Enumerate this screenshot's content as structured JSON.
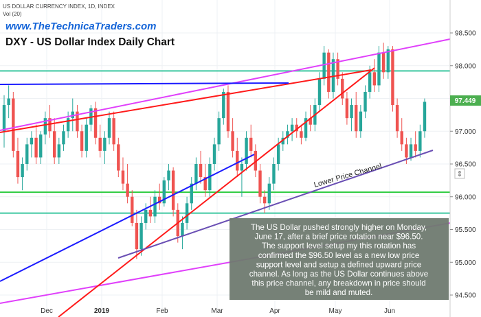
{
  "header": {
    "symbol_line": "US DOLLAR CURRENCY INDEX, 1D, INDEX",
    "volume_line": "Vol (20)",
    "brand": "www.TheTechnicaTraders.com",
    "title": "DXY - US Dollar Index Daily Chart"
  },
  "annotation": {
    "lines": [
      "The US Dollar pushed strongly higher on Monday,",
      "June 17, after a brief price rotation near $96.50.",
      "The support level setup my this rotation has",
      "confirmed the $96.50 level as a new low price",
      "support level and setup a defined upward price",
      "channel.  As long as the US Dollar continues above",
      "this price channel, any breakdown in price should",
      "be mild and muted."
    ]
  },
  "channel_label": "Lower Price Channel",
  "colors": {
    "up": "#26a69a",
    "down": "#ef5350",
    "magenta": "#e040fb",
    "red": "#ff1a1a",
    "blue": "#1a1aff",
    "purple": "#6a4fb4",
    "green": "#2ecc40",
    "teal": "#3cc7a0",
    "note_bg": "#6f7a70",
    "price_tag": "#4caf50"
  },
  "chart_data": {
    "type": "candlestick",
    "title": "DXY - US Dollar Index Daily Chart",
    "ylim": [
      94.35,
      98.8
    ],
    "y_ticks": [
      "94.500",
      "95.000",
      "95.500",
      "96.000",
      "96.500",
      "97.000",
      "97.500",
      "98.000",
      "98.500"
    ],
    "last_price": "97.449",
    "x_labels": [
      "Dec",
      "2019",
      "Feb",
      "Mar",
      "Apr",
      "May",
      "Jun"
    ],
    "horizontal_levels": [
      {
        "price": 97.92,
        "color": "teal"
      },
      {
        "price": 96.07,
        "color": "green"
      },
      {
        "price": 95.75,
        "color": "teal"
      }
    ],
    "candles": [
      [
        97.0,
        97.55,
        96.75,
        97.4
      ],
      [
        97.4,
        97.7,
        97.2,
        97.5
      ],
      [
        97.5,
        97.6,
        96.6,
        96.7
      ],
      [
        96.7,
        96.9,
        96.2,
        96.3
      ],
      [
        96.3,
        96.6,
        96.1,
        96.5
      ],
      [
        96.5,
        96.9,
        96.4,
        96.8
      ],
      [
        96.8,
        97.0,
        96.6,
        96.9
      ],
      [
        96.9,
        97.1,
        96.5,
        96.6
      ],
      [
        96.6,
        97.0,
        96.5,
        96.95
      ],
      [
        96.95,
        97.3,
        96.8,
        97.2
      ],
      [
        97.2,
        97.4,
        96.9,
        97.0
      ],
      [
        97.0,
        97.2,
        96.5,
        96.6
      ],
      [
        96.6,
        96.9,
        96.5,
        96.8
      ],
      [
        96.8,
        97.1,
        96.7,
        97.0
      ],
      [
        97.0,
        97.3,
        96.9,
        97.2
      ],
      [
        97.2,
        97.5,
        97.0,
        97.3
      ],
      [
        97.3,
        97.4,
        96.9,
        97.0
      ],
      [
        97.0,
        97.1,
        96.6,
        96.7
      ],
      [
        96.7,
        97.2,
        96.6,
        97.1
      ],
      [
        97.1,
        97.4,
        97.0,
        97.35
      ],
      [
        97.35,
        97.45,
        96.8,
        96.9
      ],
      [
        96.9,
        97.1,
        96.6,
        96.7
      ],
      [
        96.7,
        97.0,
        96.5,
        96.9
      ],
      [
        96.9,
        97.3,
        96.8,
        97.2
      ],
      [
        97.2,
        97.3,
        96.7,
        96.8
      ],
      [
        96.8,
        96.9,
        96.3,
        96.4
      ],
      [
        96.4,
        96.6,
        96.1,
        96.2
      ],
      [
        96.2,
        96.5,
        95.9,
        96.0
      ],
      [
        96.0,
        96.1,
        95.55,
        95.6
      ],
      [
        95.6,
        95.8,
        95.05,
        95.2
      ],
      [
        95.2,
        95.7,
        95.1,
        95.6
      ],
      [
        95.6,
        95.9,
        95.5,
        95.8
      ],
      [
        95.8,
        96.0,
        95.6,
        95.7
      ],
      [
        95.7,
        96.1,
        95.6,
        96.0
      ],
      [
        96.0,
        96.2,
        95.8,
        95.9
      ],
      [
        95.9,
        96.3,
        95.85,
        96.25
      ],
      [
        96.25,
        96.5,
        96.1,
        96.4
      ],
      [
        96.4,
        96.45,
        95.7,
        95.8
      ],
      [
        95.8,
        95.9,
        95.3,
        95.4
      ],
      [
        95.4,
        95.7,
        95.2,
        95.6
      ],
      [
        95.6,
        96.0,
        95.5,
        95.9
      ],
      [
        95.9,
        96.3,
        95.8,
        96.2
      ],
      [
        96.2,
        96.6,
        96.1,
        96.5
      ],
      [
        96.5,
        96.7,
        96.2,
        96.3
      ],
      [
        96.3,
        96.5,
        96.0,
        96.1
      ],
      [
        96.1,
        96.6,
        96.0,
        96.5
      ],
      [
        96.5,
        96.9,
        96.4,
        96.8
      ],
      [
        96.8,
        97.3,
        96.7,
        97.2
      ],
      [
        97.2,
        97.65,
        97.1,
        97.6
      ],
      [
        97.6,
        97.7,
        96.9,
        97.0
      ],
      [
        97.0,
        97.2,
        96.6,
        96.7
      ],
      [
        96.7,
        96.9,
        96.3,
        96.4
      ],
      [
        96.4,
        96.6,
        96.0,
        96.5
      ],
      [
        96.5,
        97.0,
        96.4,
        96.9
      ],
      [
        96.9,
        97.1,
        96.6,
        96.7
      ],
      [
        96.7,
        96.8,
        96.3,
        96.4
      ],
      [
        96.4,
        96.5,
        95.9,
        96.0
      ],
      [
        96.0,
        96.1,
        95.75,
        95.9
      ],
      [
        95.9,
        96.3,
        95.8,
        96.2
      ],
      [
        96.2,
        96.6,
        96.1,
        96.5
      ],
      [
        96.5,
        96.9,
        96.4,
        96.8
      ],
      [
        96.8,
        97.0,
        96.7,
        96.9
      ],
      [
        96.9,
        97.1,
        96.8,
        97.0
      ],
      [
        97.0,
        97.2,
        96.85,
        97.1
      ],
      [
        97.1,
        97.2,
        96.9,
        97.0
      ],
      [
        97.0,
        97.1,
        96.8,
        96.9
      ],
      [
        96.9,
        97.3,
        96.85,
        97.2
      ],
      [
        97.2,
        97.4,
        97.0,
        97.1
      ],
      [
        97.1,
        97.5,
        97.0,
        97.4
      ],
      [
        97.4,
        97.9,
        97.3,
        97.8
      ],
      [
        97.8,
        98.3,
        97.7,
        98.2
      ],
      [
        98.2,
        98.25,
        97.5,
        97.6
      ],
      [
        97.6,
        98.2,
        97.5,
        98.1
      ],
      [
        98.1,
        98.2,
        97.7,
        97.8
      ],
      [
        97.8,
        97.9,
        97.4,
        97.5
      ],
      [
        97.5,
        97.6,
        97.1,
        97.2
      ],
      [
        97.2,
        97.5,
        97.0,
        97.4
      ],
      [
        97.4,
        97.6,
        96.9,
        97.0
      ],
      [
        97.0,
        97.4,
        96.9,
        97.3
      ],
      [
        97.3,
        97.7,
        97.2,
        97.6
      ],
      [
        97.6,
        98.0,
        97.5,
        97.9
      ],
      [
        97.9,
        98.1,
        97.6,
        97.7
      ],
      [
        97.7,
        98.3,
        97.6,
        98.2
      ],
      [
        98.2,
        98.35,
        97.8,
        97.9
      ],
      [
        97.9,
        98.3,
        97.8,
        98.25
      ],
      [
        98.25,
        98.3,
        97.3,
        97.4
      ],
      [
        97.4,
        97.5,
        96.9,
        97.0
      ],
      [
        97.0,
        97.2,
        96.7,
        96.8
      ],
      [
        96.8,
        96.9,
        96.5,
        96.6
      ],
      [
        96.6,
        96.9,
        96.55,
        96.8
      ],
      [
        96.8,
        97.0,
        96.6,
        96.7
      ],
      [
        96.7,
        97.1,
        96.6,
        97.0
      ],
      [
        97.0,
        97.5,
        96.9,
        97.449
      ]
    ]
  }
}
